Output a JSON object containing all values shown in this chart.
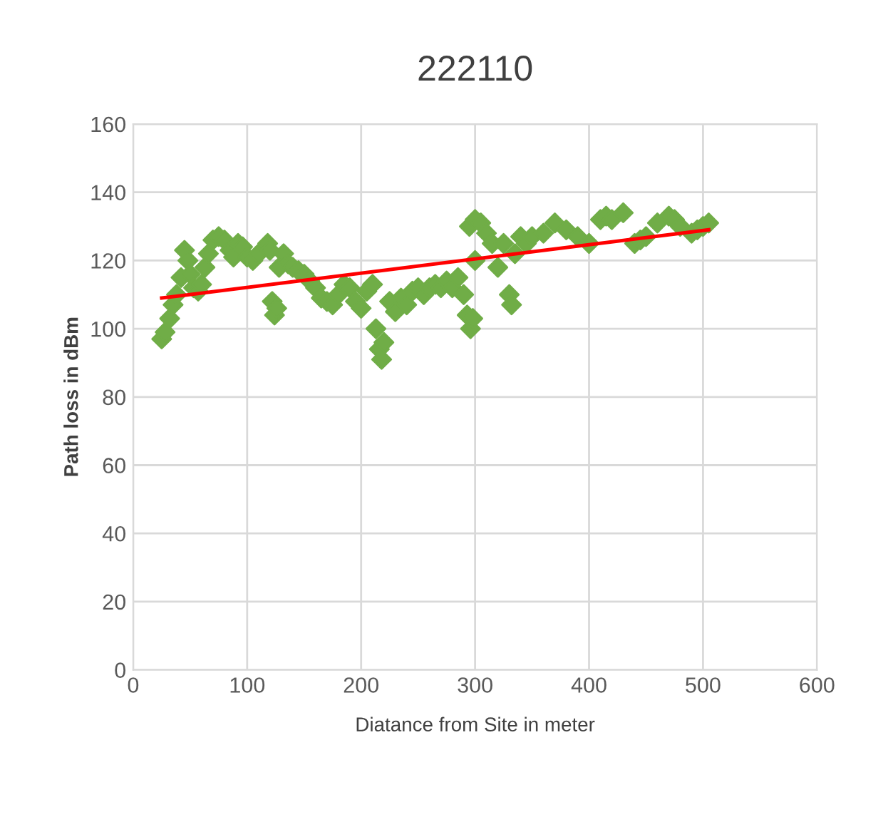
{
  "chart_data": {
    "type": "scatter",
    "title": "222110",
    "xlabel": "Diatance from Site in meter",
    "ylabel": "Path loss in dBm",
    "xlim": [
      0,
      600
    ],
    "xticks": [
      0,
      100,
      200,
      300,
      400,
      500,
      600
    ],
    "ylim": [
      0,
      160
    ],
    "yticks": [
      0,
      20,
      40,
      60,
      80,
      100,
      120,
      140,
      160
    ],
    "grid": true,
    "legend": false,
    "series": [
      {
        "color": "#70ad47",
        "marker": "diamond",
        "x": [
          25,
          28,
          32,
          35,
          38,
          42,
          45,
          48,
          50,
          53,
          57,
          60,
          63,
          66,
          70,
          75,
          80,
          85,
          88,
          92,
          96,
          100,
          105,
          110,
          118,
          120,
          122,
          124,
          126,
          128,
          132,
          136,
          140,
          145,
          150,
          155,
          160,
          165,
          170,
          175,
          180,
          185,
          190,
          195,
          200,
          205,
          210,
          213,
          216,
          218,
          220,
          225,
          230,
          235,
          240,
          245,
          250,
          255,
          260,
          265,
          270,
          275,
          280,
          285,
          290,
          293,
          296,
          298,
          300,
          295,
          300,
          305,
          310,
          315,
          320,
          325,
          330,
          332,
          335,
          340,
          345,
          350,
          360,
          370,
          380,
          390,
          400,
          410,
          415,
          420,
          430,
          440,
          445,
          450,
          460,
          470,
          475,
          480,
          490,
          495,
          500,
          505
        ],
        "values": [
          97,
          99,
          103,
          107,
          110,
          115,
          123,
          120,
          116,
          112,
          111,
          113,
          118,
          122,
          126,
          127,
          126,
          123,
          121,
          125,
          124,
          121,
          120,
          122,
          125,
          123,
          108,
          104,
          106,
          118,
          122,
          119,
          118,
          117,
          116,
          114,
          112,
          109,
          108,
          107,
          110,
          113,
          112,
          108,
          106,
          111,
          113,
          100,
          94,
          91,
          96,
          108,
          105,
          109,
          107,
          111,
          112,
          110,
          112,
          113,
          112,
          114,
          112,
          115,
          110,
          104,
          100,
          103,
          120,
          130,
          132,
          131,
          128,
          125,
          118,
          125,
          110,
          107,
          122,
          127,
          125,
          127,
          128,
          131,
          129,
          127,
          125,
          132,
          133,
          132,
          134,
          125,
          126,
          127,
          131,
          133,
          132,
          130,
          128,
          129,
          130,
          131
        ]
      },
      {
        "type": "line",
        "color": "#ff0000",
        "marker": "none",
        "line_style": "solid",
        "x": [
          25,
          505
        ],
        "values": [
          109,
          129
        ]
      }
    ]
  }
}
